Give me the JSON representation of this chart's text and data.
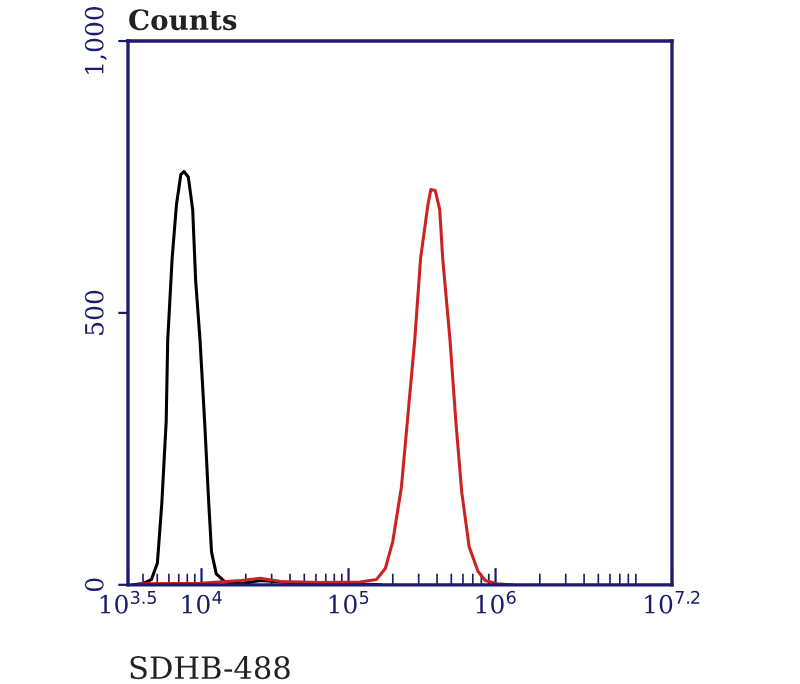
{
  "chart_data": {
    "type": "line",
    "log": "x",
    "ylabel": "Counts",
    "xlabel": "SDHB-488",
    "xlim": [
      3162,
      15850000
    ],
    "ylim": [
      0,
      1000
    ],
    "xticks": [
      {
        "value": 3162,
        "label": "10$^{3.5}$"
      },
      {
        "value": 10000,
        "label": "10$^{4}$"
      },
      {
        "value": 100000,
        "label": "10$^{5}$"
      },
      {
        "value": 1000000,
        "label": "10$^{6}$"
      },
      {
        "value": 15850000,
        "label": "10$^{7.2}$"
      }
    ],
    "yticks": [
      0,
      500,
      {
        "value": 1000,
        "label": "1,000"
      }
    ],
    "grid": false,
    "legend": false,
    "marker": "none",
    "line_style": "solid",
    "series": [
      {
        "color": "#000000",
        "x": [
          3470,
          4070,
          4570,
          5010,
          5370,
          5750,
          5890,
          6310,
          6760,
          7240,
          7590,
          8130,
          8710,
          9120,
          9770,
          10500,
          11200,
          11700,
          12600,
          14500,
          18600,
          25100,
          34700,
          46800,
          89100,
          166000
        ],
        "values": [
          0,
          3,
          10,
          40,
          150,
          300,
          450,
          600,
          700,
          755,
          760,
          750,
          690,
          560,
          450,
          300,
          150,
          60,
          20,
          5,
          2,
          8,
          5,
          3,
          2,
          0
        ]
      },
      {
        "color": "#cc2222",
        "x": [
          3800,
          9770,
          18600,
          25100,
          34700,
          64600,
          120000,
          155000,
          178000,
          200000,
          229000,
          257000,
          282000,
          309000,
          347000,
          363000,
          389000,
          417000,
          437000,
          490000,
          537000,
          589000,
          661000,
          759000,
          851000,
          1020000,
          1290000
        ],
        "values": [
          2,
          3,
          8,
          12,
          6,
          4,
          5,
          10,
          30,
          80,
          180,
          330,
          450,
          600,
          700,
          727,
          725,
          690,
          600,
          450,
          300,
          170,
          70,
          25,
          8,
          2,
          0
        ]
      }
    ]
  }
}
